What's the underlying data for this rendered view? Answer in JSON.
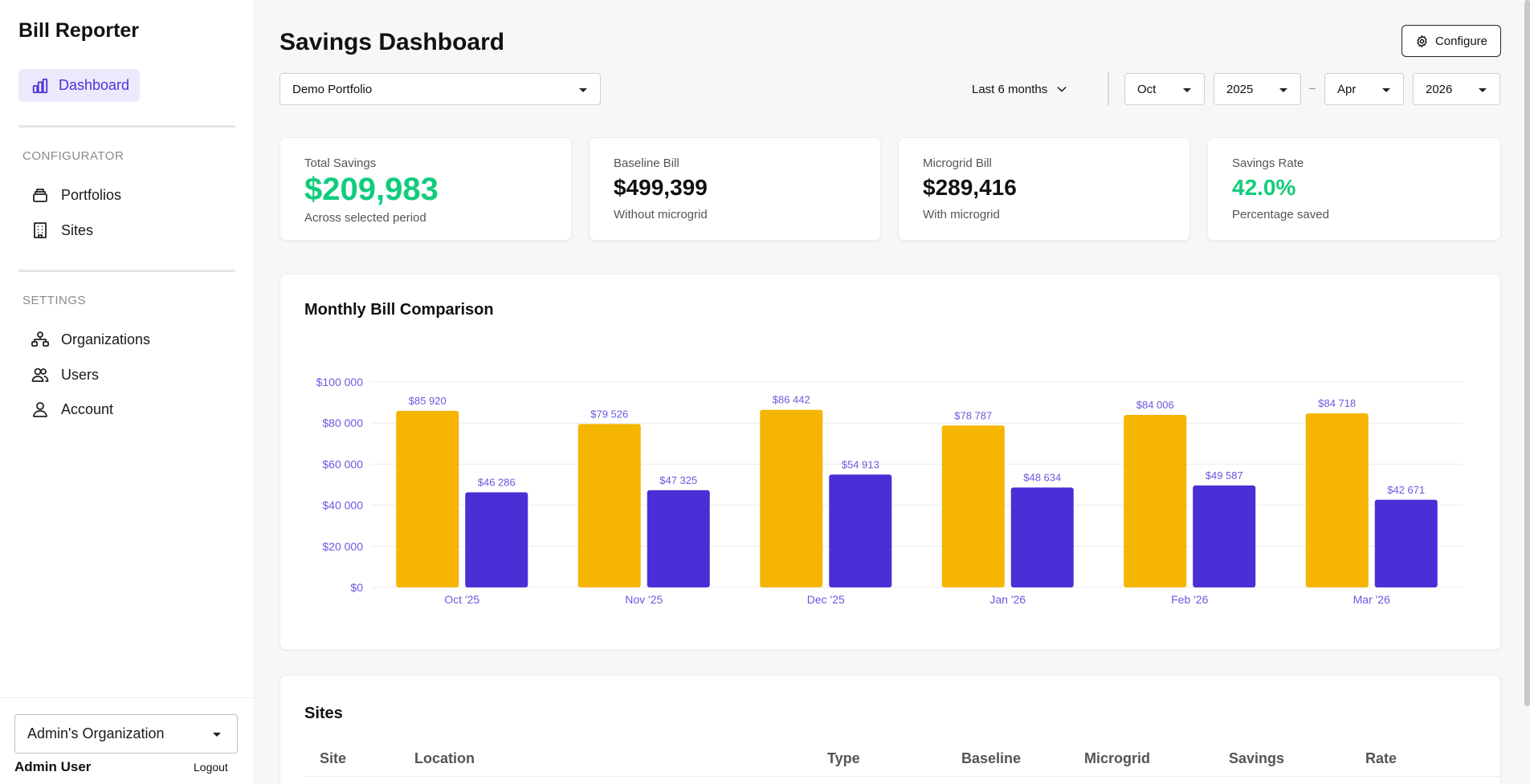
{
  "app": {
    "brand": "Bill Reporter",
    "nav_active": "Dashboard",
    "sections": {
      "configurator": "CONFIGURATOR",
      "settings": "SETTINGS"
    },
    "configurator_items": [
      "Portfolios",
      "Sites"
    ],
    "settings_items": [
      "Organizations",
      "Users",
      "Account"
    ],
    "org_select": "Admin's Organization",
    "user_name": "Admin User",
    "logout": "Logout"
  },
  "header": {
    "title": "Savings Dashboard",
    "configure": "Configure",
    "portfolio": "Demo Portfolio",
    "range": "Last 6 months",
    "from_month": "Oct",
    "from_year": "2025",
    "separator": "–",
    "to_month": "Apr",
    "to_year": "2026"
  },
  "stats": [
    {
      "label": "Total Savings",
      "value": "$209,983",
      "sub": "Across selected period"
    },
    {
      "label": "Baseline Bill",
      "value": "$499,399",
      "sub": "Without microgrid"
    },
    {
      "label": "Microgrid Bill",
      "value": "$289,416",
      "sub": "With microgrid"
    },
    {
      "label": "Savings Rate",
      "value": "42.0%",
      "sub": "Percentage saved"
    }
  ],
  "colors": {
    "accent": "#4a35d6",
    "green": "#12cc7d",
    "baseline_bar": "#f5b500",
    "microgrid_bar": "#4a2fd6"
  },
  "chart_title": "Monthly Bill Comparison",
  "chart_data": {
    "type": "bar",
    "categories": [
      "Oct '25",
      "Nov '25",
      "Dec '25",
      "Jan '26",
      "Feb '26",
      "Mar '26"
    ],
    "series": [
      {
        "values": [
          85920,
          79526,
          86442,
          78787,
          84006,
          84718
        ]
      },
      {
        "values": [
          46286,
          47325,
          54913,
          48634,
          49587,
          42671
        ]
      }
    ],
    "data_labels": [
      [
        "$85 920",
        "$79 526",
        "$86 442",
        "$78 787",
        "$84 006",
        "$84 718"
      ],
      [
        "$46 286",
        "$47 325",
        "$54 913",
        "$48 634",
        "$49 587",
        "$42 671"
      ]
    ],
    "y_ticks": [
      "$0",
      "$20 000",
      "$40 000",
      "$60 000",
      "$80 000",
      "$100 000"
    ],
    "ylim": [
      0,
      100000
    ],
    "grid": true
  },
  "sites": {
    "title": "Sites",
    "columns": [
      "Site",
      "Location",
      "Type",
      "Baseline",
      "Microgrid",
      "Savings",
      "Rate"
    ]
  }
}
